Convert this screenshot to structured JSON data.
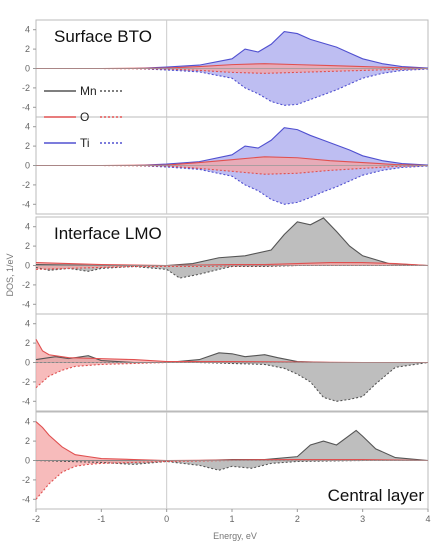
{
  "chart_data": {
    "type": "area",
    "xlabel": "Energy, eV",
    "ylabel": "DOS, 1/eV",
    "xlim": [
      -2,
      4
    ],
    "ylim": [
      -5,
      5
    ],
    "x_ticks": [
      "-2",
      "-1",
      "0",
      "1",
      "2",
      "3",
      "4"
    ],
    "y_ticks": [
      "-4",
      "-2",
      "0",
      "2",
      "4"
    ],
    "fermi_level": 0,
    "grid": false,
    "legend": {
      "placement": "top-left of second panel",
      "entries": [
        {
          "name": "Mn",
          "color": "#555555"
        },
        {
          "name": "O",
          "color": "#e05050"
        },
        {
          "name": "Ti",
          "color": "#5050d0"
        }
      ]
    },
    "panels": [
      {
        "label": "Surface BTO",
        "series": [
          {
            "name": "Ti",
            "spin": "up",
            "color": "#5050d0",
            "x": [
              -2,
              -1,
              -0.5,
              0,
              0.5,
              1,
              1.2,
              1.4,
              1.6,
              1.8,
              2.0,
              2.2,
              2.4,
              2.6,
              2.8,
              3.0,
              3.3,
              3.6,
              4
            ],
            "y": [
              0,
              0,
              0,
              0.15,
              0.35,
              1.0,
              2.0,
              1.7,
              2.5,
              3.8,
              3.6,
              3.0,
              2.6,
              2.2,
              1.6,
              1.0,
              0.5,
              0.2,
              0.05
            ]
          },
          {
            "name": "Ti",
            "spin": "down",
            "color": "#5050d0",
            "x": [
              -2,
              -1,
              -0.5,
              0,
              0.5,
              1,
              1.2,
              1.4,
              1.6,
              1.8,
              2.0,
              2.2,
              2.4,
              2.6,
              2.8,
              3.0,
              3.3,
              3.6,
              4
            ],
            "y": [
              0,
              0,
              0,
              -0.15,
              -0.35,
              -1.0,
              -2.0,
              -2.6,
              -3.4,
              -3.8,
              -3.7,
              -3.2,
              -2.7,
              -2.2,
              -1.6,
              -1.0,
              -0.5,
              -0.2,
              -0.05
            ]
          },
          {
            "name": "O",
            "spin": "up",
            "color": "#e05050",
            "x": [
              -2,
              -1,
              0,
              0.5,
              1,
              1.5,
              2,
              2.5,
              3,
              3.5,
              4
            ],
            "y": [
              0,
              0,
              0.05,
              0.2,
              0.4,
              0.5,
              0.4,
              0.3,
              0.2,
              0.1,
              0
            ]
          },
          {
            "name": "O",
            "spin": "down",
            "color": "#e05050",
            "x": [
              -2,
              -1,
              0,
              0.5,
              1,
              1.5,
              2,
              2.5,
              3,
              3.5,
              4
            ],
            "y": [
              0,
              0,
              -0.05,
              -0.2,
              -0.4,
              -0.5,
              -0.4,
              -0.3,
              -0.2,
              -0.1,
              0
            ]
          }
        ]
      },
      {
        "label": "",
        "series": [
          {
            "name": "Ti",
            "spin": "up",
            "color": "#5050d0",
            "x": [
              -2,
              -1,
              -0.5,
              0,
              0.5,
              1,
              1.2,
              1.4,
              1.6,
              1.8,
              2.0,
              2.2,
              2.4,
              2.6,
              2.8,
              3.0,
              3.3,
              3.6,
              4
            ],
            "y": [
              0,
              0,
              0,
              0.15,
              0.4,
              1.1,
              2.0,
              1.8,
              2.6,
              3.9,
              3.7,
              3.1,
              2.6,
              2.1,
              1.6,
              1.0,
              0.5,
              0.2,
              0.05
            ]
          },
          {
            "name": "Ti",
            "spin": "down",
            "color": "#5050d0",
            "x": [
              -2,
              -1,
              -0.5,
              0,
              0.5,
              1,
              1.2,
              1.4,
              1.6,
              1.8,
              2.0,
              2.2,
              2.4,
              2.6,
              2.8,
              3.0,
              3.3,
              3.6,
              4
            ],
            "y": [
              0,
              0,
              0,
              -0.15,
              -0.4,
              -1.1,
              -2.0,
              -2.6,
              -3.5,
              -4.0,
              -3.8,
              -3.3,
              -2.7,
              -2.2,
              -1.6,
              -1.0,
              -0.5,
              -0.2,
              -0.05
            ]
          },
          {
            "name": "O",
            "spin": "up",
            "color": "#e05050",
            "x": [
              -2,
              -1,
              0,
              0.5,
              1,
              1.5,
              2,
              2.5,
              3,
              3.5,
              4
            ],
            "y": [
              0,
              0,
              0.05,
              0.3,
              0.6,
              0.9,
              0.8,
              0.5,
              0.3,
              0.1,
              0
            ]
          },
          {
            "name": "O",
            "spin": "down",
            "color": "#e05050",
            "x": [
              -2,
              -1,
              0,
              0.5,
              1,
              1.5,
              2,
              2.5,
              3,
              3.5,
              4
            ],
            "y": [
              0,
              0,
              -0.05,
              -0.3,
              -0.6,
              -0.9,
              -0.8,
              -0.5,
              -0.3,
              -0.1,
              0
            ]
          }
        ]
      },
      {
        "label": "Interface LMO",
        "series": [
          {
            "name": "Mn",
            "spin": "up",
            "color": "#555555",
            "x": [
              -2,
              -1.5,
              -1,
              -0.5,
              0,
              0.4,
              0.8,
              1.2,
              1.6,
              1.8,
              2.0,
              2.2,
              2.4,
              2.6,
              2.8,
              3.0,
              3.4,
              4
            ],
            "y": [
              0.1,
              0.05,
              0,
              0,
              0,
              0.2,
              0.8,
              1.0,
              1.6,
              3.2,
              4.5,
              4.2,
              4.9,
              3.5,
              2.0,
              1.0,
              0.2,
              0
            ]
          },
          {
            "name": "Mn",
            "spin": "down",
            "color": "#555555",
            "x": [
              -2,
              -1.8,
              -1.5,
              -1.2,
              -1,
              -0.5,
              0,
              0.2,
              0.5,
              0.8,
              1,
              1.5,
              2,
              2.5,
              3,
              4
            ],
            "y": [
              -0.2,
              -0.5,
              -0.3,
              -0.6,
              -0.3,
              -0.1,
              -0.4,
              -1.3,
              -0.9,
              -0.4,
              -0.1,
              -0.1,
              0,
              0,
              0,
              0
            ]
          },
          {
            "name": "O",
            "spin": "up",
            "color": "#e05050",
            "x": [
              -2,
              -1.5,
              -1,
              0,
              0.5,
              1,
              1.5,
              2,
              2.5,
              3,
              3.5,
              4
            ],
            "y": [
              0.3,
              0.2,
              0.1,
              0,
              0.05,
              0.1,
              0.1,
              0.2,
              0.3,
              0.3,
              0.2,
              0
            ]
          },
          {
            "name": "O",
            "spin": "down",
            "color": "#e05050",
            "x": [
              -2,
              -1.5,
              -1,
              -0.5,
              0,
              0.5,
              1,
              2,
              3,
              4
            ],
            "y": [
              -0.4,
              -0.3,
              -0.2,
              -0.1,
              -0.1,
              -0.1,
              -0.05,
              0,
              0,
              0
            ]
          }
        ]
      },
      {
        "label": "",
        "series": [
          {
            "name": "Mn",
            "spin": "up",
            "color": "#555555",
            "x": [
              -2,
              -1.7,
              -1.5,
              -1.2,
              -1,
              -0.5,
              0,
              0.5,
              0.8,
              1.0,
              1.2,
              1.5,
              1.7,
              2.0,
              2.5,
              3,
              4
            ],
            "y": [
              0.3,
              0.6,
              0.4,
              0.7,
              0.2,
              0,
              0,
              0.3,
              1.0,
              0.9,
              0.6,
              0.8,
              0.5,
              0.1,
              0,
              0,
              0
            ]
          },
          {
            "name": "Mn",
            "spin": "down",
            "color": "#555555",
            "x": [
              -2,
              -1.5,
              -1,
              -0.5,
              0,
              0.5,
              1,
              1.5,
              1.8,
              2.0,
              2.2,
              2.4,
              2.6,
              2.8,
              3.0,
              3.2,
              3.5,
              4
            ],
            "y": [
              0,
              0,
              0,
              0,
              0,
              0,
              -0.1,
              -0.2,
              -0.6,
              -1.2,
              -2.0,
              -3.6,
              -4.0,
              -3.8,
              -3.5,
              -2.2,
              -0.5,
              0
            ]
          },
          {
            "name": "O",
            "spin": "up",
            "color": "#e05050",
            "x": [
              -2,
              -1.9,
              -1.8,
              -1.5,
              -1,
              -0.5,
              0,
              0.5,
              1,
              2,
              3,
              4
            ],
            "y": [
              2.4,
              1.2,
              0.8,
              0.5,
              0.4,
              0.3,
              0.1,
              0.1,
              0.1,
              0.05,
              0,
              0
            ]
          },
          {
            "name": "O",
            "spin": "down",
            "color": "#e05050",
            "x": [
              -2,
              -1.9,
              -1.8,
              -1.6,
              -1.4,
              -1,
              -0.5,
              0,
              0.5,
              1,
              2,
              3,
              4
            ],
            "y": [
              -2.6,
              -2.0,
              -1.4,
              -0.8,
              -0.4,
              -0.2,
              -0.1,
              0,
              0,
              0,
              0,
              0,
              0
            ]
          }
        ]
      },
      {
        "label": "Central layer",
        "series": [
          {
            "name": "Mn",
            "spin": "up",
            "color": "#555555",
            "x": [
              -2,
              -1,
              0,
              0.5,
              1,
              1.5,
              2,
              2.2,
              2.4,
              2.6,
              2.8,
              2.9,
              3.0,
              3.2,
              3.5,
              4
            ],
            "y": [
              0,
              0,
              0,
              0,
              0.1,
              0.1,
              0.4,
              1.6,
              2.0,
              1.6,
              2.6,
              3.1,
              2.5,
              1.2,
              0.3,
              0
            ]
          },
          {
            "name": "Mn",
            "spin": "down",
            "color": "#555555",
            "x": [
              -2,
              -1.5,
              -1,
              -0.5,
              0,
              0.5,
              0.8,
              1.0,
              1.3,
              1.6,
              2,
              3,
              4
            ],
            "y": [
              0,
              -0.1,
              -0.2,
              -0.4,
              -0.1,
              -0.5,
              -1.0,
              -0.6,
              -0.8,
              -0.3,
              -0.1,
              0,
              0
            ]
          },
          {
            "name": "O",
            "spin": "up",
            "color": "#e05050",
            "x": [
              -2,
              -1.9,
              -1.8,
              -1.6,
              -1.4,
              -1.2,
              -1,
              -0.5,
              0,
              1,
              2,
              3,
              4
            ],
            "y": [
              4.0,
              3.4,
              2.6,
              1.4,
              0.6,
              0.4,
              0.2,
              0.1,
              0,
              0.05,
              0.1,
              0.1,
              0
            ]
          },
          {
            "name": "O",
            "spin": "down",
            "color": "#e05050",
            "x": [
              -2,
              -1.9,
              -1.8,
              -1.6,
              -1.4,
              -1.2,
              -1,
              -0.5,
              0,
              1,
              2,
              3,
              4
            ],
            "y": [
              -4.0,
              -3.2,
              -2.4,
              -1.2,
              -0.6,
              -0.4,
              -0.3,
              -0.2,
              -0.1,
              0,
              0,
              0,
              0
            ]
          }
        ]
      }
    ]
  }
}
